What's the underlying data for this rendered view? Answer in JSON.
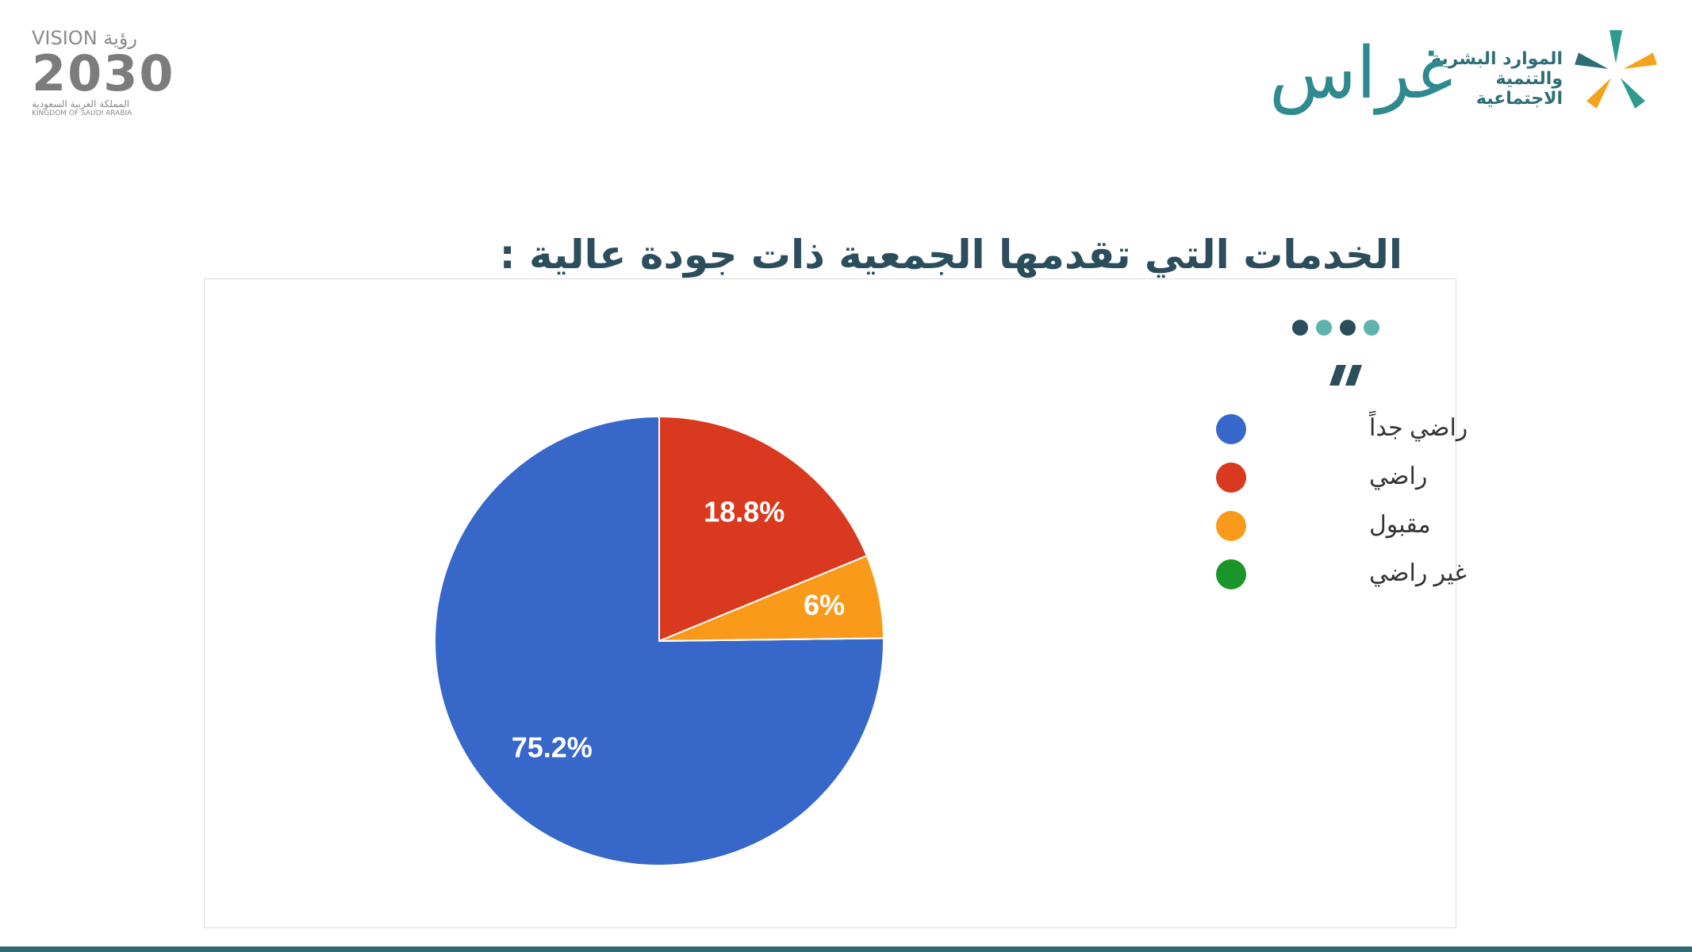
{
  "header": {
    "vision": {
      "latin": "VISION",
      "arabic": "رؤية",
      "year": "2030",
      "country_ar": "المملكة العربية السعودية",
      "country_en": "KINGDOM OF SAUDI ARABIA"
    },
    "ministry": {
      "line1": "الموارد البشرية",
      "line2": "والتنمية الاجتماعية"
    },
    "brand": "غراس"
  },
  "chart_data": {
    "type": "pie",
    "title": "الخدمات التي تقدمها الجمعية ذات جودة عالية :",
    "categories": [
      "راضي جداً",
      "راضي",
      "مقبول",
      "غير راضي"
    ],
    "values": [
      75.2,
      18.8,
      6,
      0
    ],
    "value_labels": [
      "75.2%",
      "18.8%",
      "6%",
      null
    ],
    "colors": [
      "#3767c9",
      "#d93a1f",
      "#fa9a1a",
      "#19952a"
    ],
    "legend": "right"
  }
}
